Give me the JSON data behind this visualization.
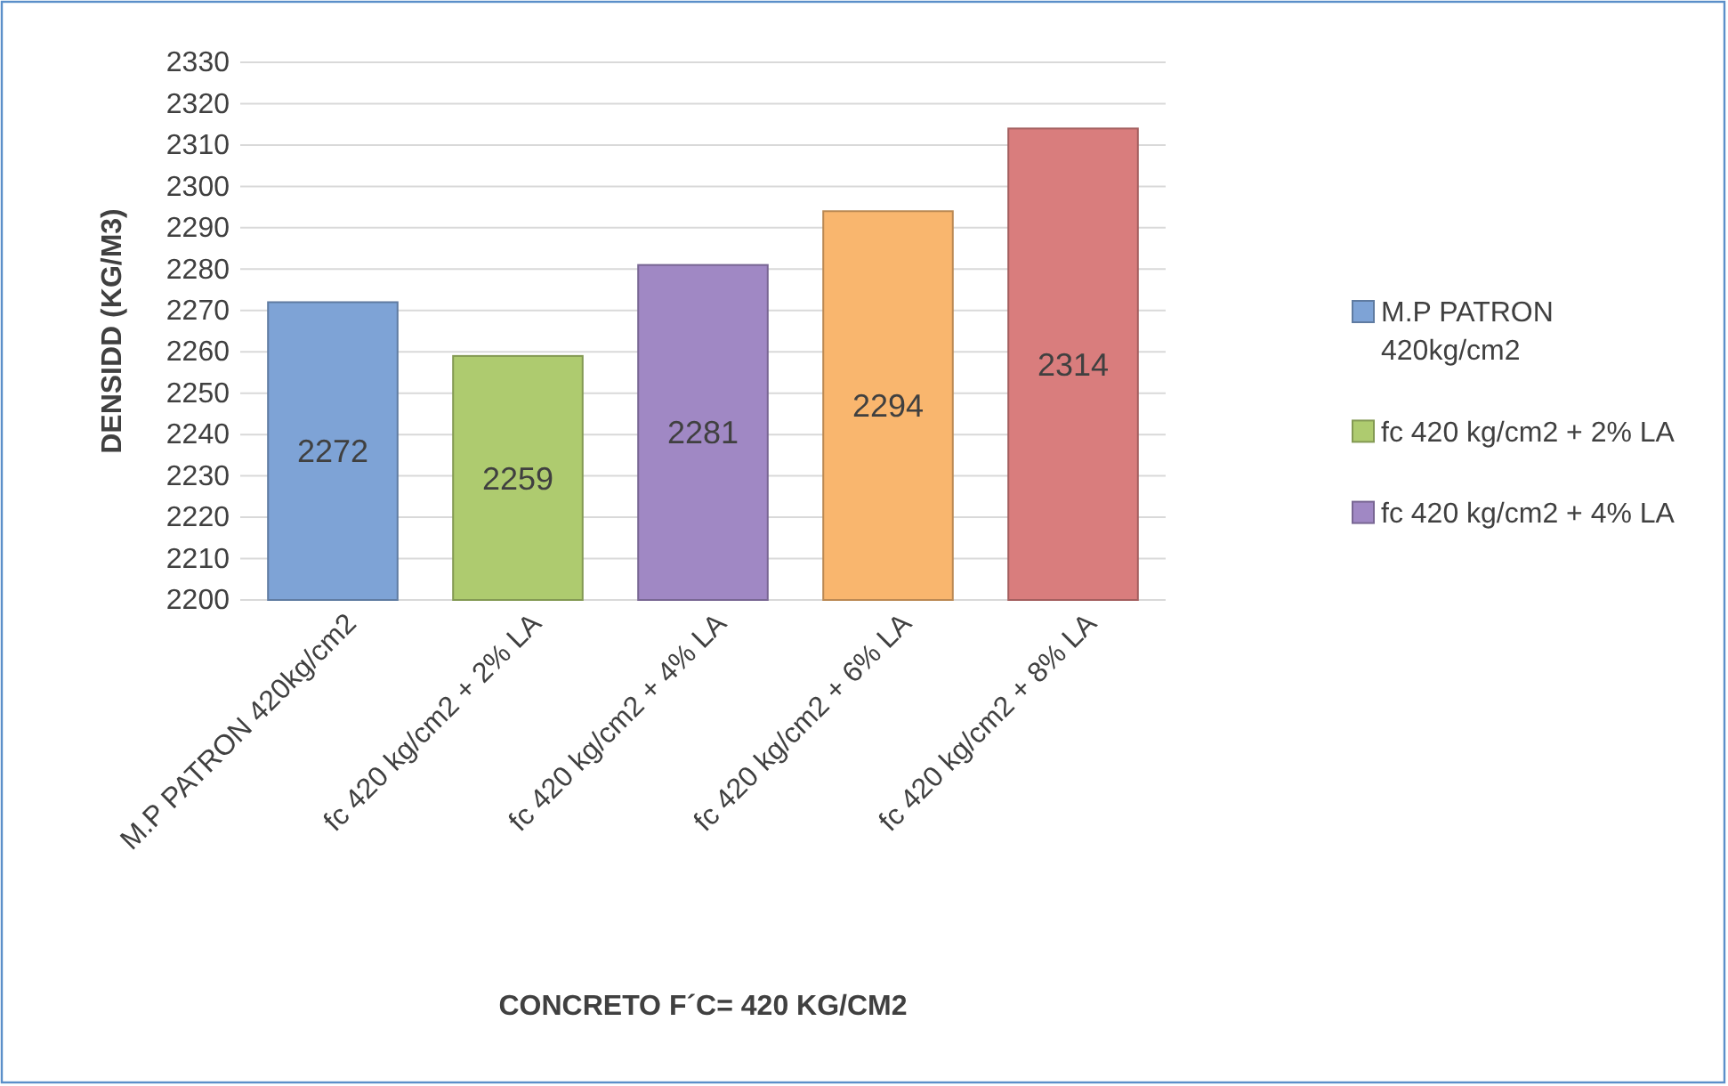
{
  "chart_data": {
    "type": "bar",
    "xlabel": "CONCRETO F´C= 420 KG/CM2",
    "ylabel": "DENSIDD (KG/M3)",
    "categories": [
      "M.P PATRON 420kg/cm2",
      "fc 420 kg/cm2 + 2% LA",
      "fc 420 kg/cm2 + 4% LA",
      "fc 420 kg/cm2 + 6% LA",
      "fc 420 kg/cm2 + 8% LA"
    ],
    "series": [
      {
        "name": "M.P PATRON 420kg/cm2",
        "color": "#7ea3d6",
        "values": [
          2272,
          null,
          null,
          null,
          null
        ]
      },
      {
        "name": "fc 420 kg/cm2 + 2% LA",
        "color": "#aecb6f",
        "values": [
          null,
          2259,
          null,
          null,
          null
        ]
      },
      {
        "name": "fc 420 kg/cm2 + 4% LA",
        "color": "#a088c4",
        "values": [
          null,
          null,
          2281,
          null,
          null
        ]
      },
      {
        "color": "#f9b66e",
        "values": [
          null,
          null,
          null,
          2294,
          null
        ]
      },
      {
        "color": "#d97d7d",
        "values": [
          null,
          null,
          null,
          null,
          2314
        ]
      }
    ],
    "ylim": [
      2200,
      2330
    ],
    "yticks": [
      2200,
      2210,
      2220,
      2230,
      2240,
      2250,
      2260,
      2270,
      2280,
      2290,
      2300,
      2310,
      2320,
      2330
    ],
    "grid": "y",
    "legend": "right",
    "data_labels": true
  }
}
